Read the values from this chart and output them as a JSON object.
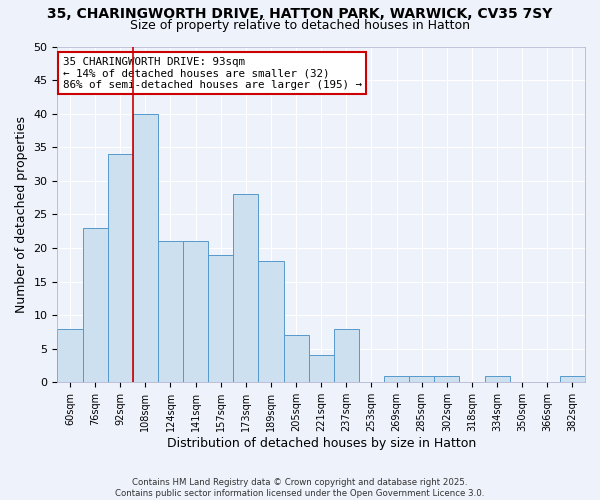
{
  "title1": "35, CHARINGWORTH DRIVE, HATTON PARK, WARWICK, CV35 7SY",
  "title2": "Size of property relative to detached houses in Hatton",
  "xlabel": "Distribution of detached houses by size in Hatton",
  "ylabel": "Number of detached properties",
  "categories": [
    "60sqm",
    "76sqm",
    "92sqm",
    "108sqm",
    "124sqm",
    "141sqm",
    "157sqm",
    "173sqm",
    "189sqm",
    "205sqm",
    "221sqm",
    "237sqm",
    "253sqm",
    "269sqm",
    "285sqm",
    "302sqm",
    "318sqm",
    "334sqm",
    "350sqm",
    "366sqm",
    "382sqm"
  ],
  "values": [
    8,
    23,
    34,
    40,
    21,
    21,
    19,
    28,
    18,
    7,
    4,
    8,
    0,
    1,
    1,
    1,
    0,
    1,
    0,
    0,
    1
  ],
  "bar_color": "#cce0f0",
  "bar_edge_color": "#5599cc",
  "red_line_x": 2.5,
  "annotation_text": "35 CHARINGWORTH DRIVE: 93sqm\n← 14% of detached houses are smaller (32)\n86% of semi-detached houses are larger (195) →",
  "annotation_box_color": "#ffffff",
  "annotation_box_edge": "#cc0000",
  "ylim": [
    0,
    50
  ],
  "yticks": [
    0,
    5,
    10,
    15,
    20,
    25,
    30,
    35,
    40,
    45,
    50
  ],
  "footer": "Contains HM Land Registry data © Crown copyright and database right 2025.\nContains public sector information licensed under the Open Government Licence 3.0.",
  "bg_color": "#eef2fb",
  "grid_color": "#ffffff",
  "title1_fontsize": 10,
  "title2_fontsize": 9
}
